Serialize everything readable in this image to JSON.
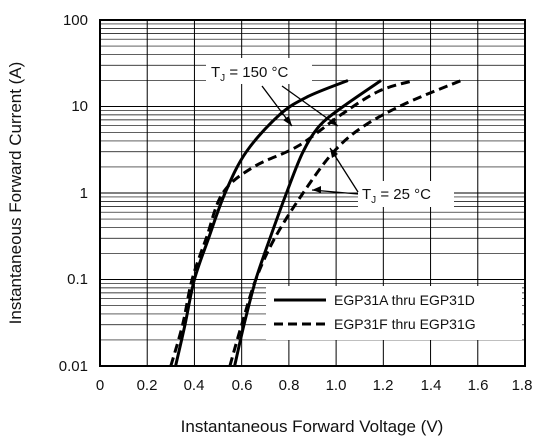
{
  "chart_data": {
    "type": "line",
    "title": "",
    "xlabel": "Instantaneous Forward Voltage (V)",
    "ylabel": "Instantaneous Forward Current (A)",
    "xlim": [
      0,
      1.8
    ],
    "ylim": [
      0.01,
      100
    ],
    "yscale": "log",
    "grid": true,
    "legend_position": "bottom-right",
    "x_ticks": [
      "0",
      "0.2",
      "0.4",
      "0.6",
      "0.8",
      "1.0",
      "1.2",
      "1.4",
      "1.6",
      "1.8"
    ],
    "y_ticks": [
      "0.01",
      "0.1",
      "1",
      "10",
      "100"
    ],
    "annotations": [
      {
        "text": "T",
        "sub": "J",
        "rest": " = 150 °C"
      },
      {
        "text": "T",
        "sub": "J",
        "rest": " = 25 °C"
      }
    ],
    "series": [
      {
        "name": "EGP31A thru EGP31D",
        "style": "solid",
        "temperature": "150 °C",
        "points": [
          [
            0.32,
            0.01
          ],
          [
            0.36,
            0.03
          ],
          [
            0.4,
            0.1
          ],
          [
            0.46,
            0.3
          ],
          [
            0.53,
            1
          ],
          [
            0.62,
            3
          ],
          [
            0.76,
            8
          ],
          [
            0.88,
            13
          ],
          [
            1.05,
            20
          ]
        ]
      },
      {
        "name": "EGP31F thru EGP31G",
        "style": "dash",
        "temperature": "150 °C",
        "points": [
          [
            0.3,
            0.01
          ],
          [
            0.35,
            0.03
          ],
          [
            0.39,
            0.1
          ],
          [
            0.45,
            0.3
          ],
          [
            0.52,
            1
          ],
          [
            0.65,
            2
          ],
          [
            0.84,
            3.5
          ],
          [
            1.02,
            8
          ],
          [
            1.18,
            15
          ],
          [
            1.33,
            20
          ]
        ]
      },
      {
        "name": "EGP31A thru EGP31D",
        "style": "solid",
        "temperature": "25 °C",
        "points": [
          [
            0.57,
            0.01
          ],
          [
            0.61,
            0.03
          ],
          [
            0.66,
            0.1
          ],
          [
            0.72,
            0.3
          ],
          [
            0.79,
            1
          ],
          [
            0.86,
            3
          ],
          [
            0.93,
            6
          ],
          [
            1.03,
            10
          ],
          [
            1.19,
            20
          ]
        ]
      },
      {
        "name": "EGP31F thru EGP31G",
        "style": "dash",
        "temperature": "25 °C",
        "points": [
          [
            0.55,
            0.01
          ],
          [
            0.6,
            0.03
          ],
          [
            0.66,
            0.1
          ],
          [
            0.74,
            0.3
          ],
          [
            0.86,
            1
          ],
          [
            0.99,
            3
          ],
          [
            1.12,
            6
          ],
          [
            1.3,
            11
          ],
          [
            1.53,
            20
          ]
        ]
      }
    ]
  }
}
